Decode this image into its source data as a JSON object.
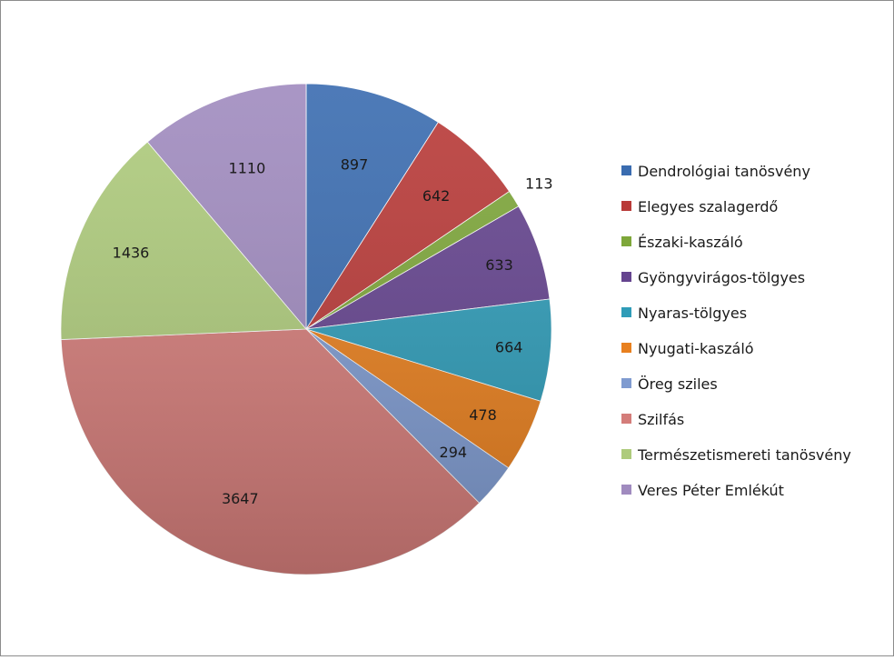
{
  "chart_data": {
    "type": "pie",
    "title": "",
    "legend_position": "right",
    "slices": [
      {
        "label": "Dendrológiai tanösvény",
        "value": 897,
        "color": "#3a6cb0"
      },
      {
        "label": "Elegyes szalagerdő",
        "value": 642,
        "color": "#b93a38"
      },
      {
        "label": "Északi-kaszáló",
        "value": 113,
        "color": "#7ea73a"
      },
      {
        "label": "Gyöngyvirágos-tölgyes",
        "value": 633,
        "color": "#65448f"
      },
      {
        "label": "Nyaras-tölgyes",
        "value": 664,
        "color": "#2f9cb8"
      },
      {
        "label": "Nyugati-kaszáló",
        "value": 478,
        "color": "#e8801f"
      },
      {
        "label": "Öreg sziles",
        "value": 294,
        "color": "#7f9bd0"
      },
      {
        "label": "Szilfás",
        "value": 3647,
        "color": "#d47d7a"
      },
      {
        "label": "Természetismereti tanösvény",
        "value": 1436,
        "color": "#aecb7c"
      },
      {
        "label": "Veres Péter Emlékút",
        "value": 1110,
        "color": "#a08bbf"
      }
    ]
  }
}
